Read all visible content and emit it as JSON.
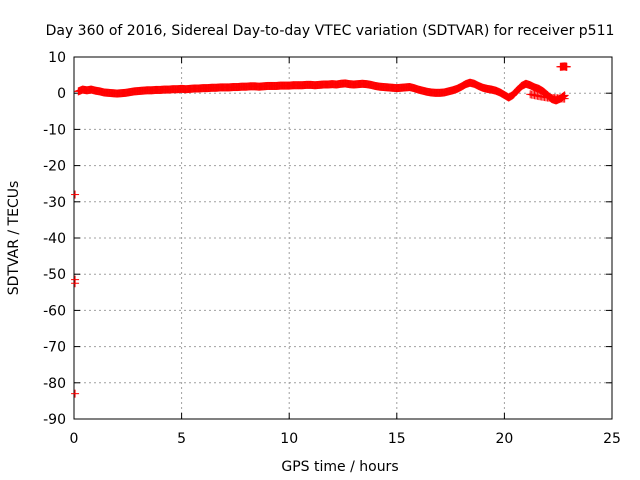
{
  "chart_data": {
    "type": "scatter",
    "title": "Day 360 of 2016, Sidereal Day-to-day VTEC variation (SDTVAR) for receiver p511",
    "xlabel": "GPS time / hours",
    "ylabel": "SDTVAR / TECUs",
    "xlim": [
      0,
      25
    ],
    "ylim": [
      -90,
      10
    ],
    "xticks": [
      0,
      5,
      10,
      15,
      20,
      25
    ],
    "yticks": [
      10,
      0,
      -10,
      -20,
      -30,
      -40,
      -50,
      -60,
      -70,
      -80,
      -90
    ],
    "grid": true,
    "marker_color": "#ff0000",
    "series": [
      {
        "points": [
          [
            0.2,
            0.5
          ],
          [
            0.4,
            1.0
          ],
          [
            0.6,
            0.8
          ],
          [
            0.8,
            1.0
          ],
          [
            1.0,
            0.7
          ],
          [
            1.2,
            0.5
          ],
          [
            1.4,
            0.2
          ],
          [
            1.6,
            0.1
          ],
          [
            1.8,
            0.0
          ],
          [
            2.0,
            -0.1
          ],
          [
            2.2,
            0.0
          ],
          [
            2.4,
            0.1
          ],
          [
            2.6,
            0.3
          ],
          [
            2.8,
            0.5
          ],
          [
            3.0,
            0.6
          ],
          [
            3.2,
            0.7
          ],
          [
            3.4,
            0.8
          ],
          [
            3.6,
            0.8
          ],
          [
            3.8,
            0.9
          ],
          [
            4.0,
            0.9
          ],
          [
            4.2,
            1.0
          ],
          [
            4.4,
            1.0
          ],
          [
            4.6,
            1.1
          ],
          [
            4.8,
            1.1
          ],
          [
            5.0,
            1.2
          ],
          [
            5.2,
            1.1
          ],
          [
            5.4,
            1.2
          ],
          [
            5.6,
            1.3
          ],
          [
            5.8,
            1.3
          ],
          [
            6.0,
            1.4
          ],
          [
            6.2,
            1.4
          ],
          [
            6.4,
            1.5
          ],
          [
            6.6,
            1.5
          ],
          [
            6.8,
            1.6
          ],
          [
            7.0,
            1.6
          ],
          [
            7.2,
            1.6
          ],
          [
            7.4,
            1.7
          ],
          [
            7.6,
            1.7
          ],
          [
            7.8,
            1.8
          ],
          [
            8.0,
            1.8
          ],
          [
            8.2,
            1.9
          ],
          [
            8.4,
            1.9
          ],
          [
            8.6,
            1.8
          ],
          [
            8.8,
            1.9
          ],
          [
            9.0,
            2.0
          ],
          [
            9.2,
            2.0
          ],
          [
            9.4,
            2.0
          ],
          [
            9.6,
            2.1
          ],
          [
            9.8,
            2.1
          ],
          [
            10.0,
            2.1
          ],
          [
            10.2,
            2.2
          ],
          [
            10.4,
            2.2
          ],
          [
            10.6,
            2.2
          ],
          [
            10.8,
            2.3
          ],
          [
            11.0,
            2.3
          ],
          [
            11.2,
            2.2
          ],
          [
            11.4,
            2.3
          ],
          [
            11.6,
            2.4
          ],
          [
            11.8,
            2.4
          ],
          [
            12.0,
            2.5
          ],
          [
            12.2,
            2.4
          ],
          [
            12.4,
            2.6
          ],
          [
            12.6,
            2.7
          ],
          [
            12.8,
            2.5
          ],
          [
            13.0,
            2.4
          ],
          [
            13.2,
            2.5
          ],
          [
            13.4,
            2.6
          ],
          [
            13.6,
            2.5
          ],
          [
            13.8,
            2.3
          ],
          [
            14.0,
            2.0
          ],
          [
            14.2,
            1.8
          ],
          [
            14.4,
            1.7
          ],
          [
            14.6,
            1.6
          ],
          [
            14.8,
            1.5
          ],
          [
            15.0,
            1.4
          ],
          [
            15.2,
            1.5
          ],
          [
            15.4,
            1.6
          ],
          [
            15.6,
            1.7
          ],
          [
            15.8,
            1.4
          ],
          [
            16.0,
            1.0
          ],
          [
            16.2,
            0.7
          ],
          [
            16.4,
            0.4
          ],
          [
            16.6,
            0.2
          ],
          [
            16.8,
            0.1
          ],
          [
            17.0,
            0.1
          ],
          [
            17.2,
            0.2
          ],
          [
            17.4,
            0.5
          ],
          [
            17.6,
            0.8
          ],
          [
            17.8,
            1.2
          ],
          [
            18.0,
            1.8
          ],
          [
            18.2,
            2.5
          ],
          [
            18.4,
            2.9
          ],
          [
            18.6,
            2.6
          ],
          [
            18.8,
            2.0
          ],
          [
            19.0,
            1.5
          ],
          [
            19.2,
            1.2
          ],
          [
            19.4,
            1.0
          ],
          [
            19.6,
            0.7
          ],
          [
            19.8,
            0.2
          ],
          [
            20.0,
            -0.5
          ],
          [
            20.2,
            -1.2
          ],
          [
            20.4,
            -0.5
          ],
          [
            20.6,
            0.8
          ],
          [
            20.8,
            2.0
          ],
          [
            21.0,
            2.6
          ],
          [
            21.2,
            2.2
          ],
          [
            21.4,
            1.6
          ],
          [
            21.6,
            1.2
          ],
          [
            21.8,
            0.5
          ],
          [
            22.0,
            -0.5
          ],
          [
            22.2,
            -1.6
          ],
          [
            22.4,
            -2.0
          ],
          [
            22.6,
            -1.5
          ],
          [
            22.8,
            -0.6
          ],
          [
            21.2,
            -0.3
          ],
          [
            21.6,
            -0.8
          ],
          [
            22.0,
            -1.2
          ],
          [
            22.4,
            -1.4
          ],
          [
            22.8,
            -1.5
          ],
          [
            22.6,
            7.3
          ],
          [
            22.8,
            7.4
          ],
          [
            22.9,
            7.3
          ]
        ]
      },
      {
        "points": [
          [
            0.05,
            -28
          ],
          [
            0.05,
            -51.5
          ],
          [
            0.05,
            -52.5
          ],
          [
            0.05,
            -83
          ]
        ]
      }
    ]
  }
}
